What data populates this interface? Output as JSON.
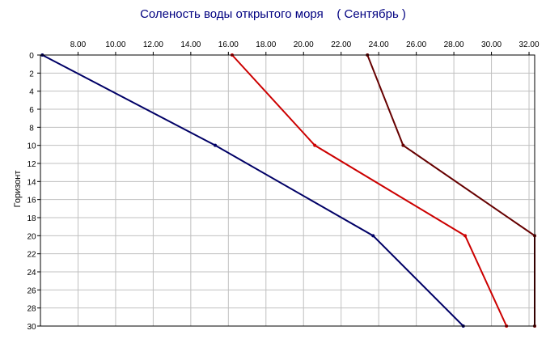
{
  "chart_data": {
    "type": "line",
    "title": "Соленость воды открытого моря    ( Сентябрь )",
    "ylabel": "Горизонт",
    "xlabel": "",
    "x_axis_position": "top",
    "y_axis_inverted": true,
    "xlim": [
      6.0,
      32.3
    ],
    "ylim": [
      0,
      30
    ],
    "xticks": [
      "8.00",
      "10.00",
      "12.00",
      "14.00",
      "16.00",
      "18.00",
      "20.00",
      "22.00",
      "24.00",
      "26.00",
      "28.00",
      "30.00",
      "32.00"
    ],
    "yticks": [
      "0",
      "2",
      "4",
      "6",
      "8",
      "10",
      "12",
      "14",
      "16",
      "18",
      "20",
      "22",
      "24",
      "26",
      "28",
      "30"
    ],
    "grid": true,
    "legend": "none",
    "series": [
      {
        "color": "#000066",
        "points": [
          [
            6.1,
            0
          ],
          [
            15.3,
            10
          ],
          [
            23.7,
            20
          ],
          [
            28.5,
            30
          ]
        ]
      },
      {
        "color": "#cc0000",
        "points": [
          [
            16.2,
            0
          ],
          [
            20.6,
            10
          ],
          [
            28.6,
            20
          ],
          [
            30.8,
            30
          ]
        ]
      },
      {
        "color": "#660000",
        "points": [
          [
            23.4,
            0
          ],
          [
            25.3,
            10
          ],
          [
            32.3,
            20
          ],
          [
            32.3,
            30
          ]
        ]
      }
    ]
  }
}
